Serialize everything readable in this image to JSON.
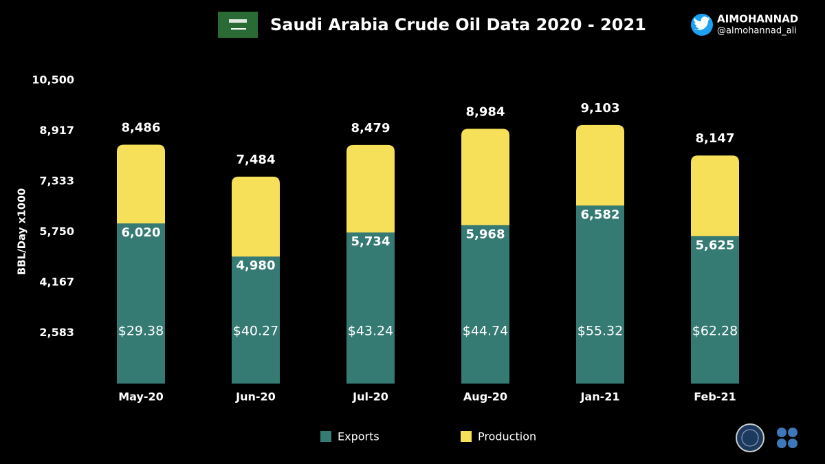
{
  "chart_data": {
    "type": "bar",
    "title": "Saudi Arabia Crude Oil Data 2020 - 2021",
    "author": "AIMOHANNAD",
    "handle": "@almohannad_ali",
    "ylabel": "BBL/Day x1000",
    "categories": [
      "May-20",
      "Jun-20",
      "Jul-20",
      "Aug-20",
      "Jan-21",
      "Feb-21"
    ],
    "series": [
      {
        "name": "Production",
        "color": "#f6e05a",
        "values": [
          8486,
          7484,
          8479,
          8984,
          9103,
          8147
        ],
        "value_labels": [
          "8,486",
          "7,484",
          "8,479",
          "8,984",
          "9,103",
          "8,147"
        ]
      },
      {
        "name": "Exports",
        "color": "#357a73",
        "values": [
          6020,
          4980,
          5734,
          5968,
          6582,
          5625
        ],
        "value_labels": [
          "6,020",
          "4,980",
          "5,734",
          "5,968",
          "6,582",
          "5,625"
        ]
      }
    ],
    "prices": {
      "values": [
        29.38,
        40.27,
        43.24,
        44.74,
        55.32,
        62.28
      ],
      "value_labels": [
        "$29.38",
        "$40.27",
        "$43.24",
        "$44.74",
        "$55.32",
        "$62.28"
      ]
    },
    "legend_order": [
      "Exports",
      "Production"
    ],
    "ylim": [
      1000,
      10500
    ],
    "yticks": [
      {
        "value": 2583,
        "label": "2,583"
      },
      {
        "value": 4167,
        "label": "4,167"
      },
      {
        "value": 5750,
        "label": "5,750"
      },
      {
        "value": 7333,
        "label": "7,333"
      },
      {
        "value": 8917,
        "label": "8,917"
      },
      {
        "value": 10500,
        "label": "10,500"
      }
    ],
    "grid": false
  }
}
